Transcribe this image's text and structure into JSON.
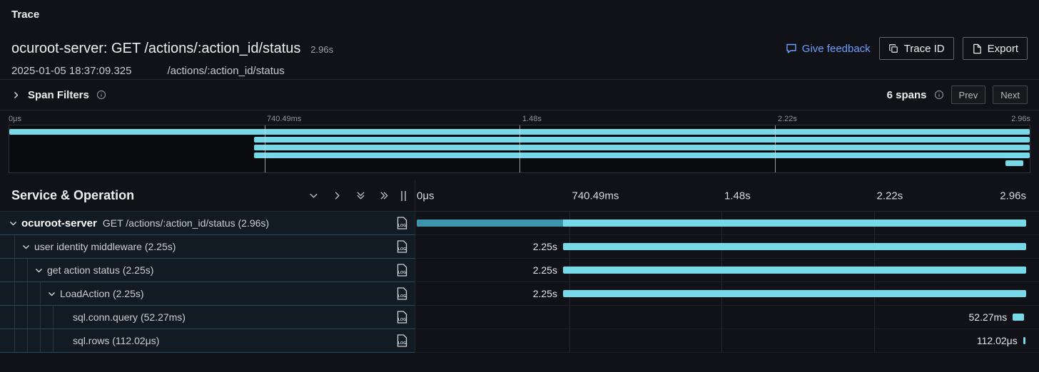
{
  "page": {
    "section_label": "Trace"
  },
  "trace_header": {
    "title": "ocuroot-server: GET /actions/:action_id/status",
    "duration": "2.96s",
    "timestamp": "2025-01-05 18:37:09.325",
    "route": "/actions/:action_id/status",
    "feedback_label": "Give feedback",
    "trace_id_label": "Trace ID",
    "export_label": "Export"
  },
  "span_filters": {
    "label": "Span Filters",
    "span_count": "6 spans",
    "prev_label": "Prev",
    "next_label": "Next"
  },
  "table_header": {
    "title": "Service & Operation"
  },
  "chart_data": {
    "type": "gantt-trace",
    "title": "ocuroot-server: GET /actions/:action_id/status",
    "total_duration": "2.96s",
    "ticks": [
      "0μs",
      "740.49ms",
      "1.48s",
      "2.22s",
      "2.96s"
    ],
    "gridline_pcts": [
      25,
      50,
      75
    ],
    "colors": {
      "span_bar": "#77d9e8",
      "span_bar_self": "#3e95ab"
    },
    "minimap_bars": [
      {
        "start_pct": 0,
        "width_pct": 100
      },
      {
        "start_pct": 24,
        "width_pct": 76
      },
      {
        "start_pct": 24,
        "width_pct": 76
      },
      {
        "start_pct": 24,
        "width_pct": 76
      },
      {
        "start_pct": 97.6,
        "width_pct": 1.8
      }
    ],
    "spans": [
      {
        "service": "ocuroot-server",
        "operation": "GET /actions/:action_id/status (2.96s)",
        "duration": "2.96s",
        "level": 0,
        "has_children": true,
        "start_pct": 0,
        "width_pct": 100,
        "self_segment_pct": 24,
        "bar_label": ""
      },
      {
        "service": "",
        "operation": "user identity middleware (2.25s)",
        "duration": "2.25s",
        "level": 1,
        "has_children": true,
        "start_pct": 24,
        "width_pct": 76,
        "bar_label": "2.25s"
      },
      {
        "service": "",
        "operation": "get action status (2.25s)",
        "duration": "2.25s",
        "level": 2,
        "has_children": true,
        "start_pct": 24,
        "width_pct": 76,
        "bar_label": "2.25s"
      },
      {
        "service": "",
        "operation": "LoadAction (2.25s)",
        "duration": "2.25s",
        "level": 3,
        "has_children": true,
        "start_pct": 24,
        "width_pct": 76,
        "bar_label": "2.25s"
      },
      {
        "service": "",
        "operation": "sql.conn.query (52.27ms)",
        "duration": "52.27ms",
        "level": 4,
        "has_children": false,
        "start_pct": 97.8,
        "width_pct": 1.8,
        "bar_label": "52.27ms"
      },
      {
        "service": "",
        "operation": "sql.rows (112.02μs)",
        "duration": "112.02μs",
        "level": 4,
        "has_children": false,
        "start_pct": 99.5,
        "width_pct": 0.4,
        "bar_label": "112.02μs"
      }
    ]
  }
}
